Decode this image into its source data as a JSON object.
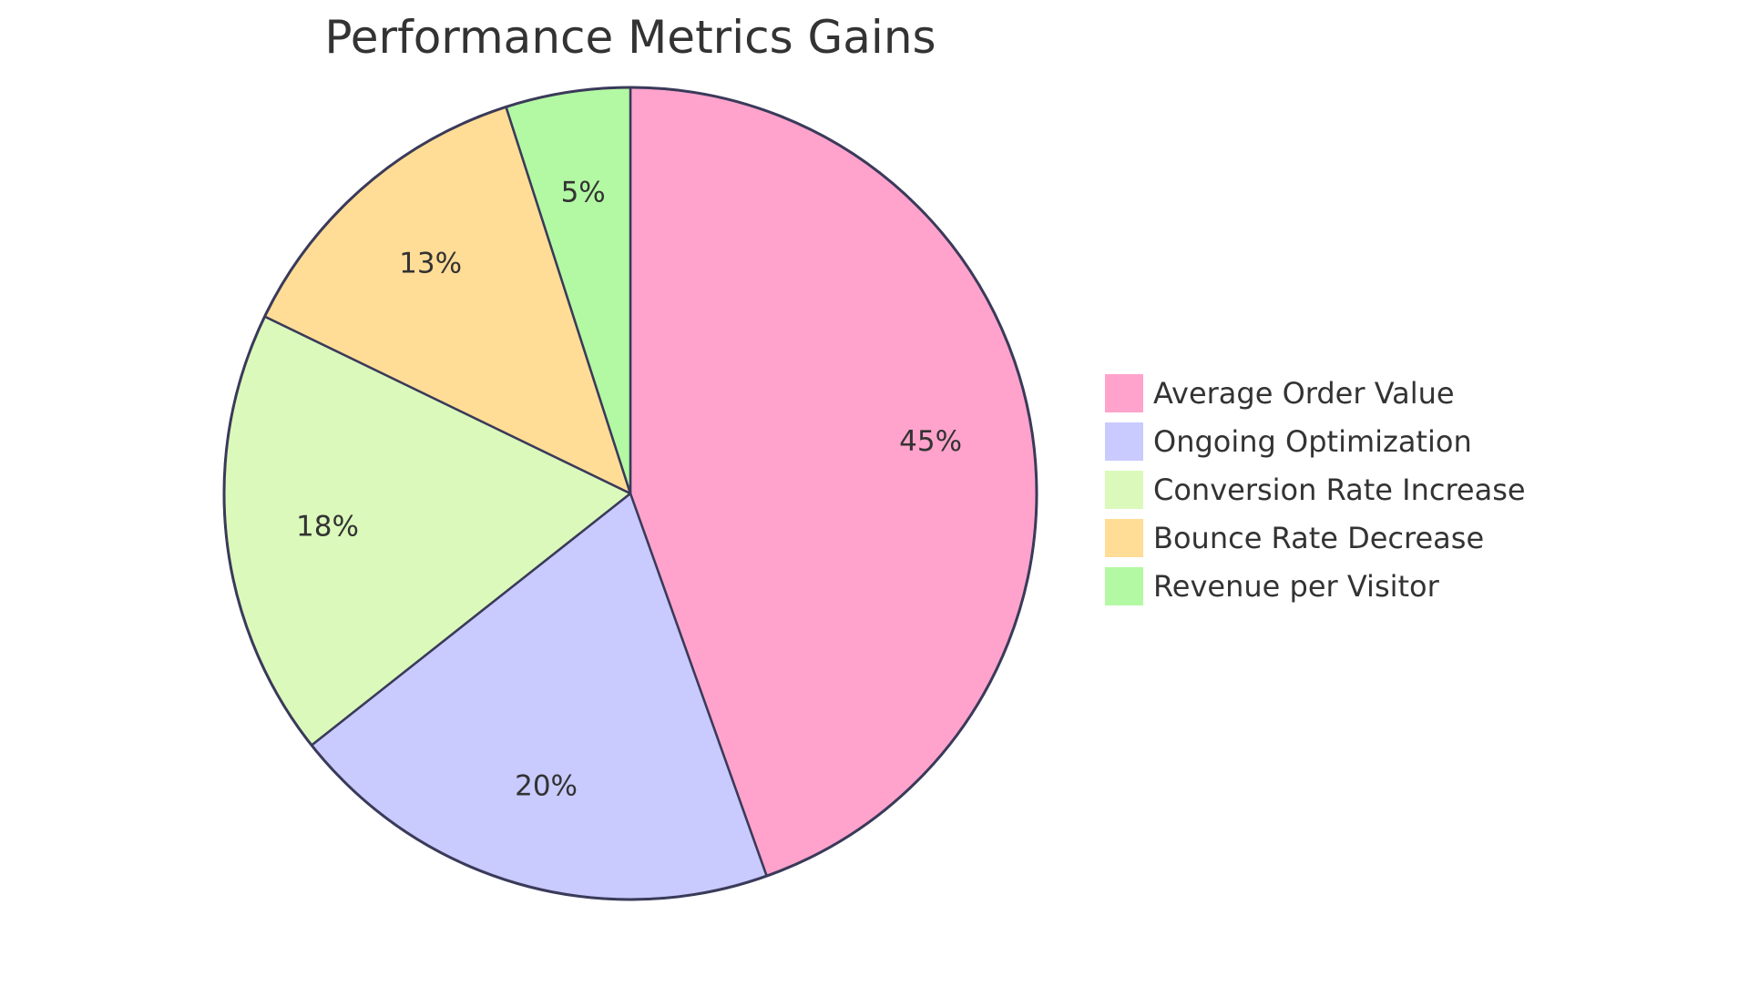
{
  "chart_data": {
    "type": "pie",
    "title": "Performance Metrics Gains",
    "categories": [
      "Average Order Value",
      "Ongoing Optimization",
      "Conversion Rate Increase",
      "Bounce Rate Decrease",
      "Revenue per Visitor"
    ],
    "values": [
      45,
      20,
      18,
      13,
      5
    ],
    "labels": [
      "45%",
      "20%",
      "18%",
      "13%",
      "5%"
    ],
    "colors": [
      "#FFA3CC",
      "#C9CAFD",
      "#DBF9BB",
      "#FFDD96",
      "#B3F8A3"
    ],
    "stroke_color": "#3A3A5A",
    "legend_position": "right"
  }
}
